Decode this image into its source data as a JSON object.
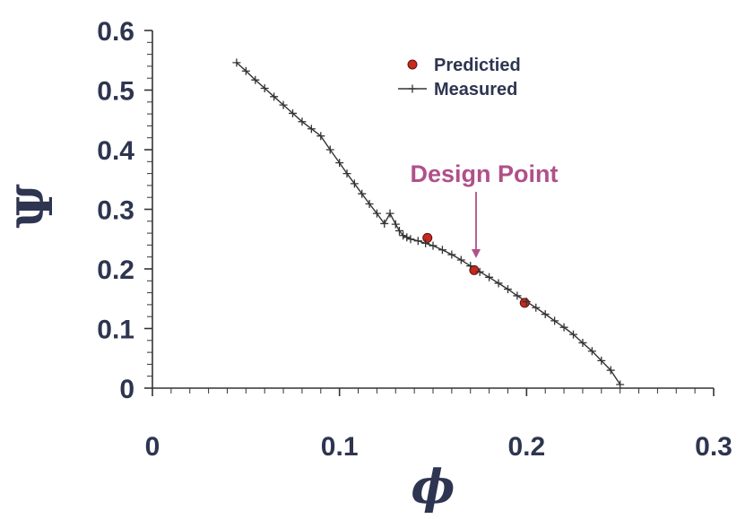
{
  "chart_data": {
    "type": "scatter",
    "xlabel": "ϕ",
    "ylabel": "Ψ",
    "xlim": [
      0,
      0.3
    ],
    "ylim": [
      0,
      0.6
    ],
    "x_ticks": [
      0,
      0.1,
      0.2,
      0.3
    ],
    "x_tick_labels": [
      "0",
      "0.1",
      "0.2",
      "0.3"
    ],
    "y_ticks": [
      0,
      0.1,
      0.2,
      0.3,
      0.4,
      0.5,
      0.6
    ],
    "y_tick_labels": [
      "0",
      "0.1",
      "0.2",
      "0.3",
      "0.4",
      "0.5",
      "0.6"
    ],
    "grid": false,
    "legend_position": "top-right",
    "series": [
      {
        "name": "Predictied",
        "marker": "circle",
        "line": false,
        "color": "#c8281e",
        "x": [
          0.147,
          0.172,
          0.199
        ],
        "y": [
          0.252,
          0.198,
          0.143
        ]
      },
      {
        "name": "Measured",
        "marker": "plus",
        "line": true,
        "color": "#333333",
        "x": [
          0.045,
          0.05,
          0.055,
          0.06,
          0.065,
          0.07,
          0.075,
          0.08,
          0.085,
          0.09,
          0.095,
          0.1,
          0.104,
          0.108,
          0.112,
          0.116,
          0.12,
          0.124,
          0.127,
          0.13,
          0.132,
          0.134,
          0.136,
          0.138,
          0.142,
          0.146,
          0.15,
          0.155,
          0.16,
          0.165,
          0.17,
          0.175,
          0.18,
          0.185,
          0.19,
          0.195,
          0.2,
          0.205,
          0.21,
          0.215,
          0.22,
          0.225,
          0.23,
          0.235,
          0.24,
          0.245,
          0.25
        ],
        "y": [
          0.546,
          0.532,
          0.517,
          0.503,
          0.489,
          0.475,
          0.461,
          0.447,
          0.435,
          0.423,
          0.4,
          0.378,
          0.36,
          0.343,
          0.326,
          0.309,
          0.293,
          0.276,
          0.293,
          0.275,
          0.264,
          0.256,
          0.253,
          0.25,
          0.247,
          0.243,
          0.239,
          0.232,
          0.224,
          0.215,
          0.205,
          0.195,
          0.186,
          0.176,
          0.166,
          0.155,
          0.145,
          0.135,
          0.124,
          0.113,
          0.102,
          0.09,
          0.076,
          0.062,
          0.046,
          0.03,
          0.006
        ]
      }
    ],
    "annotations": [
      {
        "text": "Design Point",
        "x": 0.173,
        "y": 0.218,
        "color": "#b0508a"
      }
    ]
  }
}
